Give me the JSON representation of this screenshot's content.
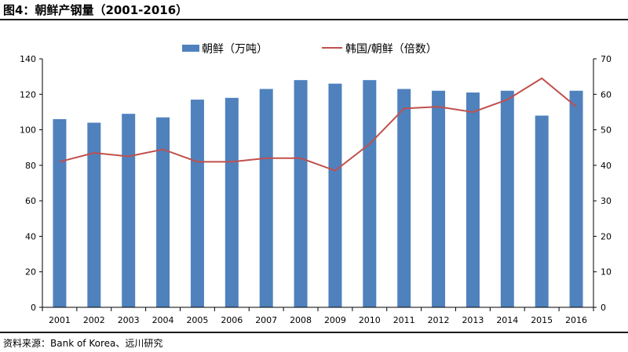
{
  "header": {
    "title": "图4：朝鲜产钢量（2001-2016）"
  },
  "footer": {
    "source": "资料来源：Bank of Korea、远川研究"
  },
  "colors": {
    "bar": "#4f81bd",
    "line": "#c0504d"
  },
  "chart_data": {
    "type": "bar",
    "categories": [
      "2001",
      "2002",
      "2003",
      "2004",
      "2005",
      "2006",
      "2007",
      "2008",
      "2009",
      "2010",
      "2011",
      "2012",
      "2013",
      "2014",
      "2015",
      "2016"
    ],
    "series": [
      {
        "name": "朝鲜（万吨）",
        "type": "bar",
        "axis": "left",
        "values": [
          106,
          104,
          109,
          107,
          117,
          118,
          123,
          128,
          126,
          128,
          123,
          122,
          121,
          122,
          108,
          122
        ]
      },
      {
        "name": "韩国/朝鲜（倍数）",
        "type": "line",
        "axis": "right",
        "values": [
          41,
          43.5,
          42.5,
          44.5,
          41,
          41,
          42,
          42,
          38.5,
          46,
          56,
          56.5,
          55,
          58.5,
          64.5,
          56.5
        ]
      }
    ],
    "ylim_left": [
      0,
      140
    ],
    "ylim_right": [
      0,
      70
    ],
    "yticks_left": [
      "0",
      "20",
      "40",
      "60",
      "80",
      "100",
      "120",
      "140"
    ],
    "yticks_right": [
      "0",
      "10",
      "20",
      "30",
      "40",
      "50",
      "60",
      "70"
    ],
    "grid": false,
    "legend": "top-center"
  }
}
